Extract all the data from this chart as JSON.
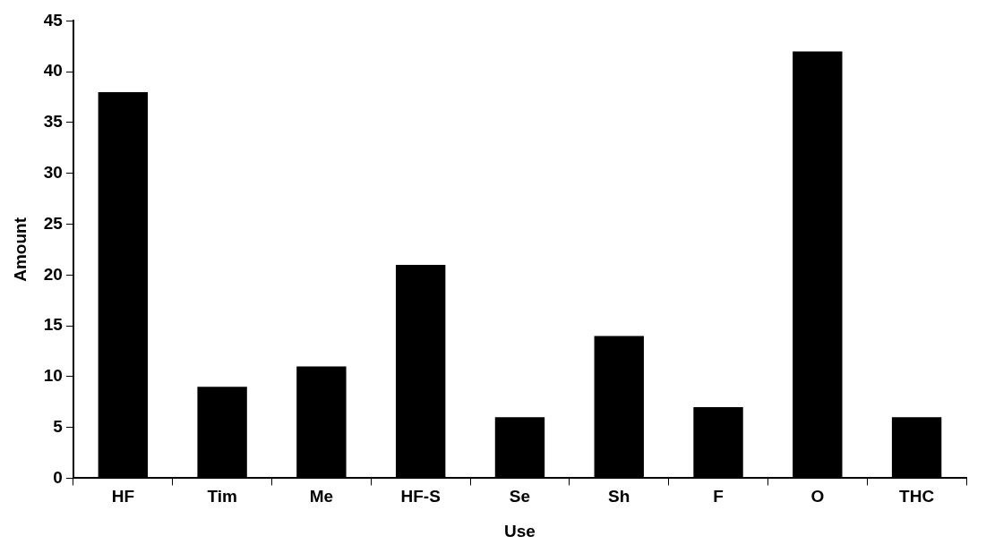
{
  "chart_data": {
    "type": "bar",
    "xlabel": "Use",
    "ylabel": "Amount",
    "categories": [
      "HF",
      "Tim",
      "Me",
      "HF-S",
      "Se",
      "Sh",
      "F",
      "O",
      "THC"
    ],
    "values": [
      38,
      9,
      11,
      21,
      6,
      14,
      7,
      42,
      6
    ],
    "color": "#000000",
    "ylim": [
      0,
      45
    ],
    "yticks": [
      0,
      5,
      10,
      15,
      20,
      25,
      30,
      35,
      40,
      45
    ],
    "grid": false,
    "legend": false
  }
}
